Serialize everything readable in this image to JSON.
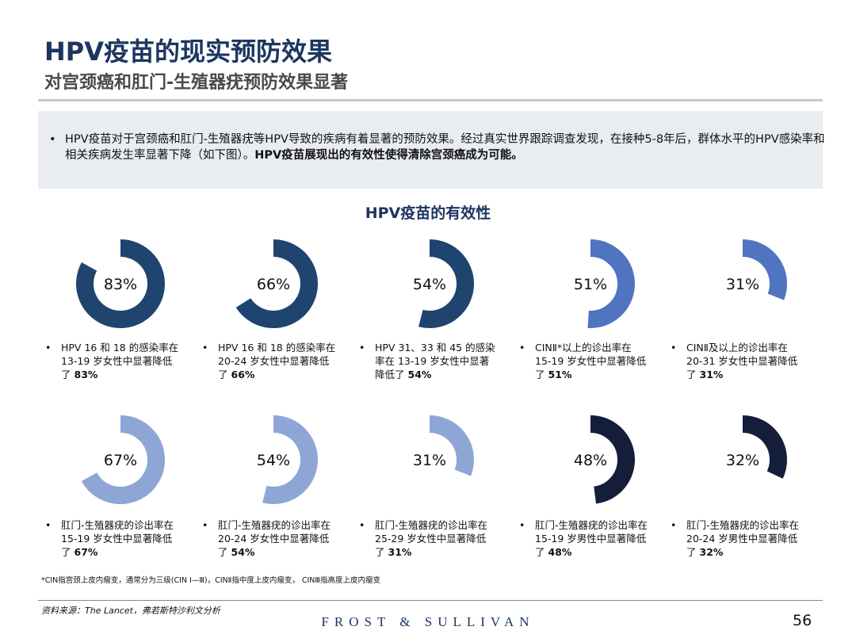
{
  "header": {
    "title": "HPV疫苗的现实预防效果",
    "subtitle": "对宫颈癌和肛门-生殖器疣预防效果显著"
  },
  "intro": {
    "text": "HPV疫苗对于宫颈癌和肛门-生殖器疣等HPV导致的疾病有着显著的预防效果。经过真实世界跟踪调查发现，在接种5-8年后，群体水平的HPV感染率和相关疾病发生率显著下降（如下图）。",
    "bold": "HPV疫苗展现出的有效性使得清除宫颈癌成为可能。"
  },
  "section_title": "HPV疫苗的有效性",
  "items": [
    {
      "value": 83,
      "label": "83%",
      "color": "#1f446f",
      "desc": [
        "HPV 16 和 18 的感染率在",
        "13-19 岁女性中显著降低",
        "了"
      ],
      "desc_bold": "83%"
    },
    {
      "value": 66,
      "label": "66%",
      "color": "#1f446f",
      "desc": [
        "HPV 16 和 18 的感染率在",
        "20-24 岁女性中显著降低",
        "了"
      ],
      "desc_bold": "66%"
    },
    {
      "value": 54,
      "label": "54%",
      "color": "#1f446f",
      "desc": [
        "HPV 31、33 和 45 的感染",
        "率在 13-19 岁女性中显著",
        "降低了"
      ],
      "desc_bold": "54%"
    },
    {
      "value": 51,
      "label": "51%",
      "color": "#5074c0",
      "desc": [
        "CINⅡ*以上的诊出率在",
        "15-19 岁女性中显著降低",
        "了"
      ],
      "desc_bold": "51%"
    },
    {
      "value": 31,
      "label": "31%",
      "color": "#5074c0",
      "desc": [
        "CINⅡ及以上的诊出率在",
        "20-31 岁女性中显著降低",
        "了"
      ],
      "desc_bold": "31%"
    },
    {
      "value": 67,
      "label": "67%",
      "color": "#8ea6d6",
      "desc": [
        "肛门-生殖器疣的诊出率在",
        "15-19 岁女性中显著降低",
        "了"
      ],
      "desc_bold": "67%"
    },
    {
      "value": 54,
      "label": "54%",
      "color": "#8ea6d6",
      "desc": [
        "肛门-生殖器疣的诊出率在",
        "20-24 岁女性中显著降低",
        "了"
      ],
      "desc_bold": "54%"
    },
    {
      "value": 31,
      "label": "31%",
      "color": "#8ea6d6",
      "desc": [
        "肛门-生殖器疣的诊出率在",
        "25-29 岁女性中显著降低",
        "了"
      ],
      "desc_bold": "31%"
    },
    {
      "value": 48,
      "label": "48%",
      "color": "#141d3a",
      "desc": [
        "肛门-生殖器疣的诊出率在",
        "15-19 岁男性中显著降低",
        "了"
      ],
      "desc_bold": "48%"
    },
    {
      "value": 32,
      "label": "32%",
      "color": "#141d3a",
      "desc": [
        "肛门-生殖器疣的诊出率在",
        "20-24 岁男性中显著降低",
        "了"
      ],
      "desc_bold": "32%"
    }
  ],
  "footnote": "*CIN指宫颈上皮内瘤变，通常分为三级(CIN Ⅰ—Ⅲ)，CINⅡ指中度上皮内瘤变， CINⅢ指高度上皮内瘤变",
  "source": "资料来源：The Lancet，弗若斯特沙利文分析",
  "logo": "FROST & SULLIVAN",
  "page_number": "56"
}
